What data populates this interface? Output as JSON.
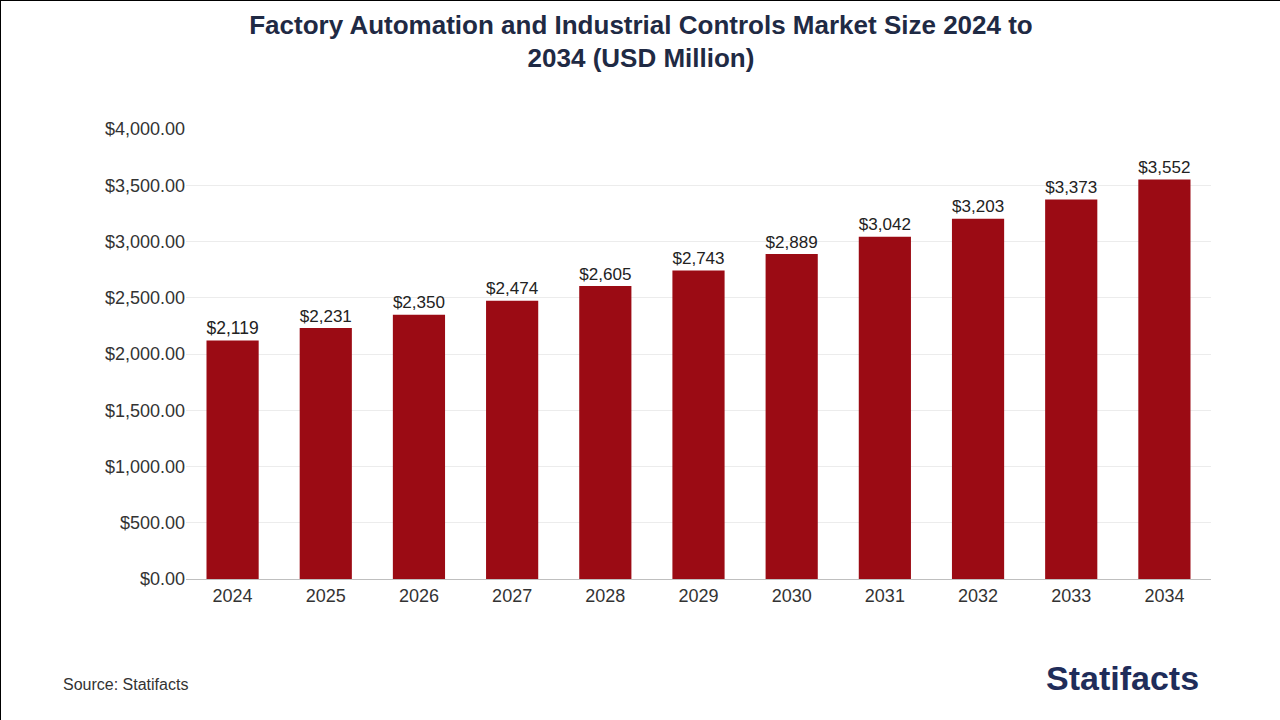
{
  "chart_data": {
    "type": "bar",
    "title": "Factory Automation and Industrial Controls Market Size 2024 to 2034 (USD Million)",
    "categories": [
      "2024",
      "2025",
      "2026",
      "2027",
      "2028",
      "2029",
      "2030",
      "2031",
      "2032",
      "2033",
      "2034"
    ],
    "values": [
      2119,
      2231,
      2350,
      2474,
      2605,
      2743,
      2889,
      3042,
      3203,
      3373,
      3552
    ],
    "value_labels": [
      "$2,119",
      "$2,231",
      "$2,350",
      "$2,474",
      "$2,605",
      "$2,743",
      "$2,889",
      "$3,042",
      "$3,203",
      "$3,373",
      "$3,552"
    ],
    "color": "#9b0b14",
    "ylim": [
      0,
      4000
    ],
    "yticks": [
      {
        "value": 0,
        "label": "$0.00"
      },
      {
        "value": 500,
        "label": "$500.00"
      },
      {
        "value": 1000,
        "label": "$1,000.00"
      },
      {
        "value": 1500,
        "label": "$1,500.00"
      },
      {
        "value": 2000,
        "label": "$2,000.00"
      },
      {
        "value": 2500,
        "label": "$2,500.00"
      },
      {
        "value": 3000,
        "label": "$3,000.00"
      },
      {
        "value": 3500,
        "label": "$3,500.00"
      },
      {
        "value": 4000,
        "label": "$4,000.00"
      }
    ],
    "grid": true,
    "data_labels": true,
    "annotations": [
      "Source: Statifacts",
      "Statifacts"
    ]
  }
}
